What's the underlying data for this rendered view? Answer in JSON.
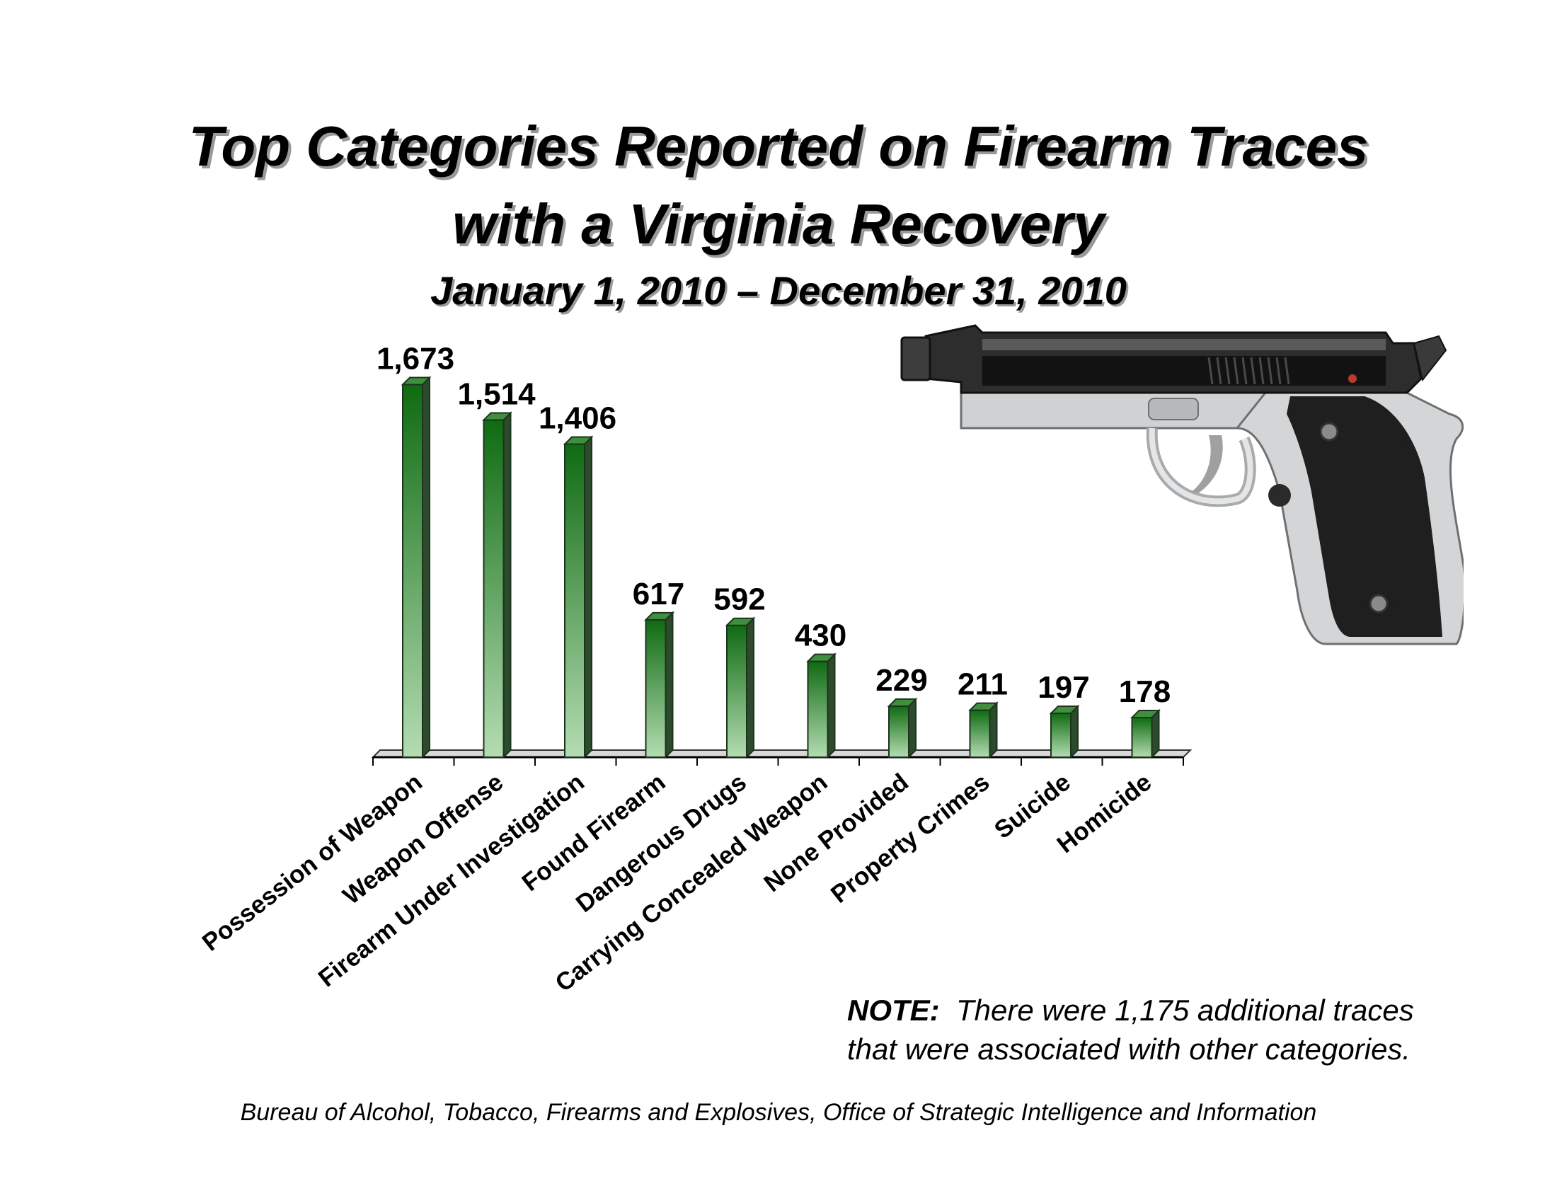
{
  "chart_data": {
    "type": "bar",
    "title": "Top Categories Reported on Firearm Traces",
    "title_line2": "with a Virginia Recovery",
    "subtitle": "January 1, 2010 – December 31, 2010",
    "categories": [
      "Possession of Weapon",
      "Weapon Offense",
      "Firearm Under Investigation",
      "Found Firearm",
      "Dangerous Drugs",
      "Carrying Concealed Weapon",
      "None Provided",
      "Property Crimes",
      "Suicide",
      "Homicide"
    ],
    "values": [
      1673,
      1514,
      1406,
      617,
      592,
      430,
      229,
      211,
      197,
      178
    ],
    "value_labels": [
      "1,673",
      "1,514",
      "1,406",
      "617",
      "592",
      "430",
      "229",
      "211",
      "197",
      "178"
    ],
    "ylim": [
      0,
      1700
    ],
    "grid": false,
    "bar_style": "3d",
    "colors": {
      "bar_top": "#0f6b12",
      "bar_bottom": "#b4dcb2",
      "bar_side": "#2c4a2c"
    }
  },
  "note": {
    "label": "NOTE:",
    "line1": "There were 1,175 additional traces",
    "line2": "that were associated with other categories."
  },
  "source": "Bureau of Alcohol, Tobacco, Firearms and Explosives, Office of Strategic Intelligence and Information",
  "illustration": {
    "icon": "pistol-icon"
  }
}
